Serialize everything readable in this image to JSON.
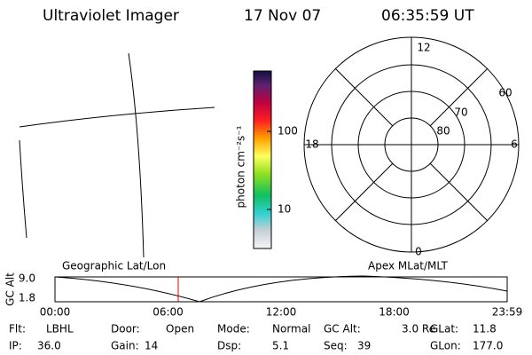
{
  "header": {
    "title": "Ultraviolet Imager",
    "date": "17 Nov 07",
    "time": "06:35:59 UT"
  },
  "colorbar": {
    "unit": "photon cm⁻²s⁻¹",
    "ticks": [
      "100",
      "10"
    ]
  },
  "polar": {
    "labels": [
      "12",
      "0",
      "18",
      "6",
      "60",
      "70",
      "80"
    ]
  },
  "orbit": {
    "left_label": "Geographic Lat/Lon",
    "right_label": "Apex MLat/MLT",
    "y_label": "GC Alt",
    "y_ticks": [
      "9.0",
      "1.8"
    ],
    "x_ticks": [
      "00:00",
      "06:00",
      "12:00",
      "18:00",
      "23:59"
    ]
  },
  "status": {
    "rows": [
      [
        {
          "label": "Flt:",
          "value": "LBHL"
        },
        {
          "label": "Door:",
          "value": "Open"
        },
        {
          "label": "Mode:",
          "value": "Normal"
        },
        {
          "label": "GC Alt:",
          "value": "3.0 Re"
        },
        {
          "label": "GLat:",
          "value": "11.8"
        }
      ],
      [
        {
          "label": "IP:",
          "value": "36.0"
        },
        {
          "label": "Gain:",
          "value": "14"
        },
        {
          "label": "Dsp:",
          "value": "5.1"
        },
        {
          "label": "Seq:",
          "value": "39"
        },
        {
          "label": "GLon:",
          "value": "177.0"
        }
      ]
    ]
  }
}
